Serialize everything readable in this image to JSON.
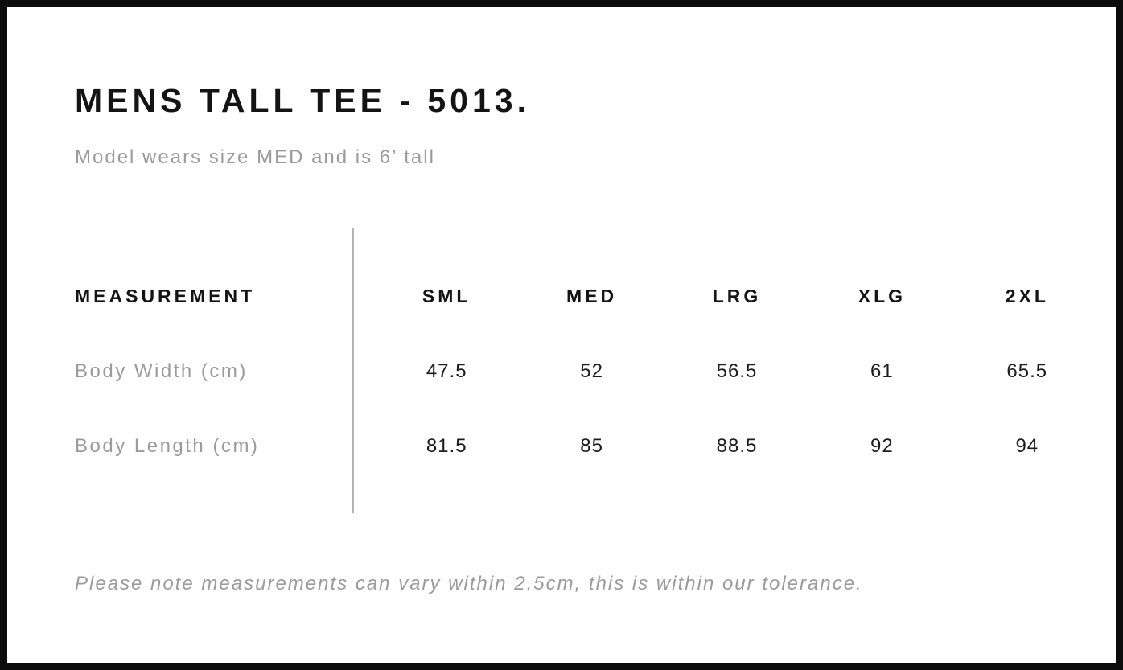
{
  "chart_data": {
    "type": "table",
    "title": "MENS TALL TEE - 5013.",
    "subtitle": "Model wears size MED and is 6’ tall",
    "columns": [
      "MEASUREMENT",
      "SML",
      "MED",
      "LRG",
      "XLG",
      "2XL"
    ],
    "rows": [
      {
        "label": "Body Width (cm)",
        "values": [
          47.5,
          52,
          56.5,
          61,
          65.5
        ]
      },
      {
        "label": "Body Length (cm)",
        "values": [
          81.5,
          85,
          88.5,
          92,
          94
        ]
      }
    ],
    "note": "Please note measurements can vary within 2.5cm, this is within our tolerance.",
    "layout_hints": {
      "first_column_divider": true,
      "grid": "off",
      "value_alignment": "center"
    }
  },
  "colors": {
    "text_primary": "#141414",
    "text_muted": "#9b9b9b",
    "divider": "#b3b3b3",
    "page_border": "#0c0c0c",
    "background": "#ffffff"
  }
}
